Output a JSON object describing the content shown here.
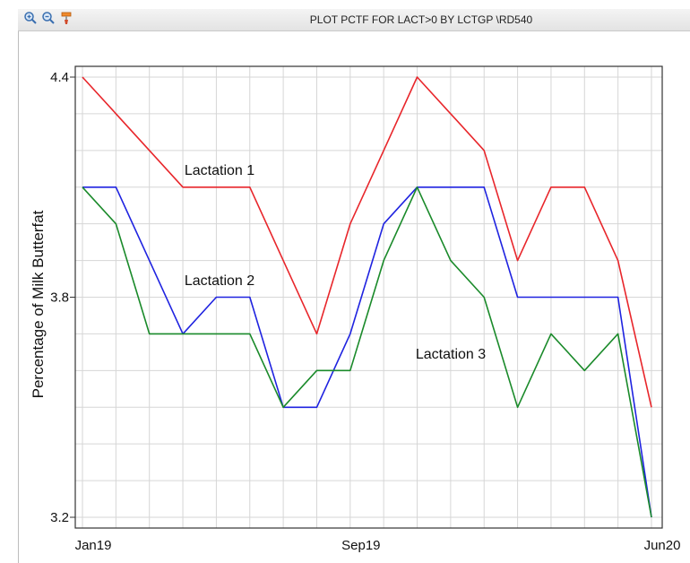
{
  "window": {
    "title": "PLOT PCTF FOR LACT>0 BY LCTGP \\RD540",
    "tools": [
      {
        "icon": "zoom-in-icon"
      },
      {
        "icon": "zoom-out-icon"
      },
      {
        "icon": "paint-brush-icon"
      }
    ]
  },
  "chart_data": {
    "type": "line",
    "ylabel": "Percentage of Milk Butterfat",
    "ylim": [
      3.2,
      4.4
    ],
    "yticks": [
      {
        "value": 4.4,
        "label": "4.4"
      },
      {
        "value": 3.8,
        "label": "3.8"
      },
      {
        "value": 3.2,
        "label": "3.2"
      }
    ],
    "xticks": [
      {
        "index": 0,
        "label": "Jan19"
      },
      {
        "index": 8,
        "label": "Sep19"
      },
      {
        "index": 17,
        "label": "Jun20"
      }
    ],
    "grid": true,
    "x": [
      "Jan19",
      "Feb19",
      "Mar19",
      "Apr19",
      "May19",
      "Jun19",
      "Jul19",
      "Aug19",
      "Sep19",
      "Oct19",
      "Nov19",
      "Dec19",
      "Jan20",
      "Feb20",
      "Mar20",
      "Apr20",
      "May20",
      "Jun20"
    ],
    "series": [
      {
        "name": "Lactation 1",
        "color": "#e8262b",
        "values": [
          4.4,
          4.3,
          4.2,
          4.1,
          4.1,
          4.1,
          3.9,
          3.7,
          4.0,
          4.2,
          4.4,
          4.3,
          4.2,
          3.9,
          4.1,
          4.1,
          3.9,
          3.5
        ]
      },
      {
        "name": "Lactation 2",
        "color": "#1f23e0",
        "values": [
          4.1,
          4.1,
          3.9,
          3.7,
          3.8,
          3.8,
          3.5,
          3.5,
          3.7,
          4.0,
          4.1,
          4.1,
          4.1,
          3.8,
          3.8,
          3.8,
          3.8,
          3.2
        ]
      },
      {
        "name": "Lactation 3",
        "color": "#1a8a2a",
        "values": [
          4.1,
          4.0,
          3.7,
          3.7,
          3.7,
          3.7,
          3.5,
          3.6,
          3.6,
          3.9,
          4.1,
          3.9,
          3.8,
          3.5,
          3.7,
          3.6,
          3.7,
          3.2
        ]
      }
    ]
  }
}
